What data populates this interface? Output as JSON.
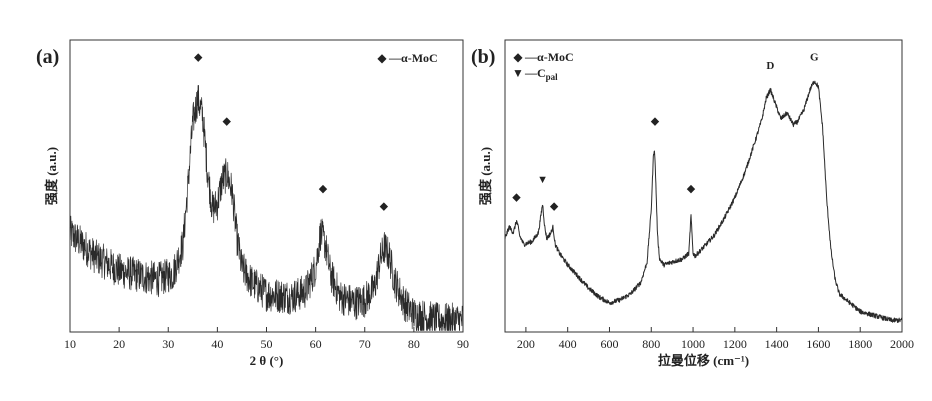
{
  "chart_data": [
    {
      "type": "line",
      "panel_label": "(a)",
      "xlabel": "2 θ (°)",
      "ylabel": "强度 (a.u.)",
      "xlim": [
        10,
        90
      ],
      "x_ticks": [
        10,
        20,
        30,
        40,
        50,
        60,
        70,
        80,
        90
      ],
      "y_ticks": [],
      "noise_amplitude": 0.06,
      "legend": {
        "placement": "top-right",
        "entries": [
          {
            "marker": "diamond",
            "label": "—α-MoC"
          }
        ]
      },
      "series": [
        {
          "name": "α-MoC",
          "x": [
            10,
            15,
            20,
            25,
            28,
            31,
            33,
            34,
            35,
            36,
            37,
            38,
            39,
            40,
            41,
            42,
            43,
            44,
            45,
            47,
            50,
            55,
            58,
            60,
            61,
            62,
            63,
            65,
            68,
            70,
            72,
            73,
            74,
            75,
            76,
            78,
            80,
            85,
            90
          ],
          "y": [
            0.34,
            0.26,
            0.21,
            0.19,
            0.18,
            0.2,
            0.3,
            0.5,
            0.72,
            0.8,
            0.74,
            0.55,
            0.42,
            0.44,
            0.52,
            0.54,
            0.48,
            0.32,
            0.22,
            0.17,
            0.13,
            0.12,
            0.14,
            0.22,
            0.34,
            0.3,
            0.2,
            0.12,
            0.1,
            0.11,
            0.15,
            0.24,
            0.29,
            0.26,
            0.18,
            0.1,
            0.06,
            0.04,
            0.04
          ]
        }
      ],
      "peak_markers": [
        {
          "x": 36.1,
          "y": 0.93,
          "symbol": "◆"
        },
        {
          "x": 41.9,
          "y": 0.71,
          "symbol": "◆"
        },
        {
          "x": 61.5,
          "y": 0.48,
          "symbol": "◆"
        },
        {
          "x": 73.9,
          "y": 0.42,
          "symbol": "◆"
        }
      ]
    },
    {
      "type": "line",
      "panel_label": "(b)",
      "xlabel": "拉曼位移 (cm⁻¹)",
      "ylabel": "强度 (a.u.)",
      "xlim": [
        100,
        2000
      ],
      "x_ticks": [
        200,
        400,
        600,
        800,
        1000,
        1200,
        1400,
        1600,
        1800,
        2000
      ],
      "y_ticks": [],
      "noise_amplitude": 0.008,
      "legend": {
        "placement": "top-left",
        "entries": [
          {
            "marker": "diamond",
            "label": "—α-MoC"
          },
          {
            "marker": "triangle-down",
            "label": "—C",
            "sub": "pal"
          }
        ]
      },
      "series": [
        {
          "name": "α-MoC",
          "x": [
            100,
            120,
            140,
            155,
            160,
            170,
            190,
            230,
            260,
            280,
            290,
            300,
            320,
            330,
            340,
            360,
            400,
            450,
            500,
            550,
            600,
            650,
            700,
            750,
            780,
            800,
            810,
            815,
            820,
            830,
            840,
            860,
            900,
            950,
            980,
            990,
            1000,
            1010,
            1050,
            1100,
            1150,
            1200,
            1250,
            1300,
            1330,
            1350,
            1370,
            1390,
            1420,
            1450,
            1480,
            1500,
            1530,
            1560,
            1580,
            1600,
            1620,
            1640,
            1660,
            1680,
            1700,
            1750,
            1800,
            1850,
            1900,
            1950,
            2000
          ],
          "y": [
            0.32,
            0.36,
            0.34,
            0.38,
            0.37,
            0.33,
            0.3,
            0.31,
            0.34,
            0.44,
            0.36,
            0.32,
            0.34,
            0.36,
            0.3,
            0.27,
            0.23,
            0.19,
            0.15,
            0.12,
            0.1,
            0.11,
            0.13,
            0.17,
            0.24,
            0.42,
            0.6,
            0.63,
            0.55,
            0.33,
            0.25,
            0.23,
            0.24,
            0.25,
            0.27,
            0.4,
            0.27,
            0.26,
            0.29,
            0.33,
            0.39,
            0.46,
            0.55,
            0.66,
            0.73,
            0.8,
            0.83,
            0.79,
            0.73,
            0.75,
            0.71,
            0.72,
            0.76,
            0.83,
            0.86,
            0.84,
            0.7,
            0.45,
            0.28,
            0.18,
            0.13,
            0.1,
            0.07,
            0.06,
            0.05,
            0.04,
            0.04
          ]
        }
      ],
      "peak_markers": [
        {
          "x": 155,
          "y": 0.45,
          "symbol": "◆"
        },
        {
          "x": 280,
          "y": 0.51,
          "symbol": "▼"
        },
        {
          "x": 335,
          "y": 0.42,
          "symbol": "◆"
        },
        {
          "x": 818,
          "y": 0.71,
          "symbol": "◆"
        },
        {
          "x": 990,
          "y": 0.48,
          "symbol": "◆"
        },
        {
          "x": 1370,
          "y": 0.9,
          "symbol": "D"
        },
        {
          "x": 1580,
          "y": 0.93,
          "symbol": "G"
        }
      ]
    }
  ]
}
